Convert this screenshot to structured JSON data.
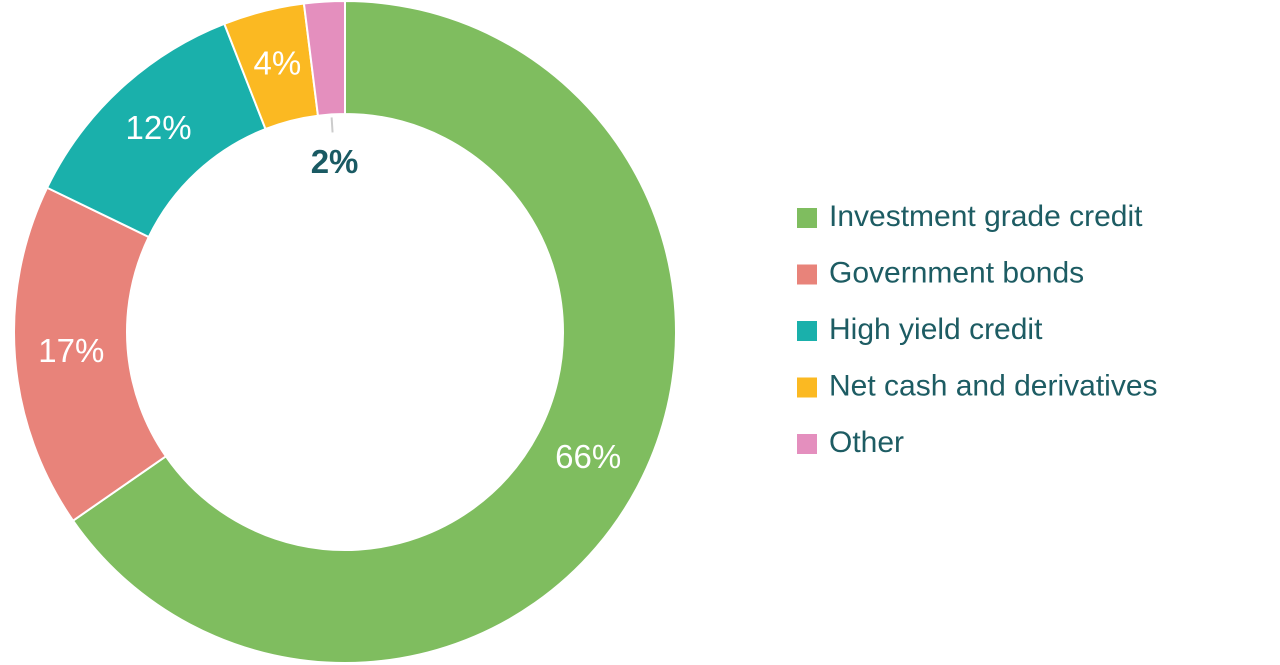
{
  "chart_data": {
    "type": "donut",
    "categories": [
      "Investment grade credit",
      "Government bonds",
      "High yield credit",
      "Net cash and derivatives",
      "Other"
    ],
    "values": [
      66,
      17,
      12,
      4,
      2
    ],
    "value_labels": [
      "66%",
      "17%",
      "12%",
      "4%",
      "2%"
    ],
    "colors": [
      "#7fbd5f",
      "#e8837a",
      "#1ab0ab",
      "#fbb922",
      "#e48fbe"
    ],
    "legend": "right"
  }
}
